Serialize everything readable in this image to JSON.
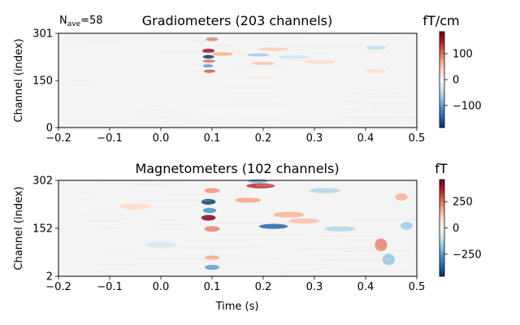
{
  "chart_data": [
    {
      "type": "heatmap",
      "title": "Gradiometers (203 channels)",
      "annotation": {
        "main": "N",
        "sub": "ave",
        "suffix": "=58"
      },
      "xlabel": "",
      "ylabel": "Channel (index)",
      "xlim": [
        -0.2,
        0.5
      ],
      "xticks": [
        -0.2,
        -0.1,
        0.0,
        0.1,
        0.2,
        0.3,
        0.4,
        0.5
      ],
      "xtick_labels": [
        "−0.2",
        "−0.1",
        "0.0",
        "0.1",
        "0.2",
        "0.3",
        "0.4",
        "0.5"
      ],
      "ylim": [
        0,
        301
      ],
      "yticks": [
        0,
        150,
        301
      ],
      "ytick_labels": [
        "0",
        "150",
        "301"
      ],
      "colorbar": {
        "label": "fT/cm",
        "range": [
          -185,
          185
        ],
        "ticks": [
          100,
          0,
          -100
        ],
        "tick_labels": [
          "100",
          "0",
          "−100"
        ],
        "colormap": "RdBu_r"
      },
      "features": [
        {
          "t": 0.093,
          "ch": 245,
          "amp": 0.85,
          "dt": 0.012,
          "dch": 7
        },
        {
          "t": 0.093,
          "ch": 226,
          "amp": -0.95,
          "dt": 0.011,
          "dch": 6
        },
        {
          "t": 0.094,
          "ch": 212,
          "amp": 0.55,
          "dt": 0.012,
          "dch": 5
        },
        {
          "t": 0.092,
          "ch": 197,
          "amp": -0.55,
          "dt": 0.01,
          "dch": 5
        },
        {
          "t": 0.095,
          "ch": 180,
          "amp": 0.7,
          "dt": 0.011,
          "dch": 5
        },
        {
          "t": 0.1,
          "ch": 282,
          "amp": 0.5,
          "dt": 0.012,
          "dch": 6
        },
        {
          "t": 0.12,
          "ch": 235,
          "amp": 0.35,
          "dt": 0.02,
          "dch": 6
        },
        {
          "t": 0.19,
          "ch": 232,
          "amp": -0.35,
          "dt": 0.022,
          "dch": 5
        },
        {
          "t": 0.2,
          "ch": 205,
          "amp": 0.3,
          "dt": 0.022,
          "dch": 5
        },
        {
          "t": 0.22,
          "ch": 250,
          "amp": 0.25,
          "dt": 0.03,
          "dch": 6
        },
        {
          "t": 0.26,
          "ch": 225,
          "amp": -0.2,
          "dt": 0.03,
          "dch": 6
        },
        {
          "t": 0.31,
          "ch": 210,
          "amp": 0.2,
          "dt": 0.03,
          "dch": 6
        },
        {
          "t": 0.42,
          "ch": 255,
          "amp": -0.25,
          "dt": 0.02,
          "dch": 6
        },
        {
          "t": 0.42,
          "ch": 180,
          "amp": 0.2,
          "dt": 0.02,
          "dch": 6
        }
      ]
    },
    {
      "type": "heatmap",
      "title": "Magnetometers (102 channels)",
      "xlabel": "Time (s)",
      "ylabel": "Channel (index)",
      "xlim": [
        -0.2,
        0.5
      ],
      "xticks": [
        -0.2,
        -0.1,
        0.0,
        0.1,
        0.2,
        0.3,
        0.4,
        0.5
      ],
      "xtick_labels": [
        "−0.2",
        "−0.1",
        "0.0",
        "0.1",
        "0.2",
        "0.3",
        "0.4",
        "0.5"
      ],
      "ylim": [
        2,
        302
      ],
      "yticks": [
        2,
        152,
        302
      ],
      "ytick_labels": [
        "2",
        "152",
        "302"
      ],
      "colorbar": {
        "label": "fT",
        "range": [
          -460,
          460
        ],
        "ticks": [
          250,
          0,
          -250
        ],
        "tick_labels": [
          "250",
          "0",
          "−250"
        ],
        "colormap": "RdBu_r"
      },
      "features": [
        {
          "t": 0.093,
          "ch": 235,
          "amp": -0.95,
          "dt": 0.014,
          "dch": 9
        },
        {
          "t": 0.093,
          "ch": 185,
          "amp": 0.95,
          "dt": 0.014,
          "dch": 9
        },
        {
          "t": 0.095,
          "ch": 208,
          "amp": -0.6,
          "dt": 0.013,
          "dch": 8
        },
        {
          "t": 0.1,
          "ch": 150,
          "amp": 0.5,
          "dt": 0.015,
          "dch": 9
        },
        {
          "t": 0.1,
          "ch": 30,
          "amp": -0.55,
          "dt": 0.014,
          "dch": 8
        },
        {
          "t": 0.1,
          "ch": 60,
          "amp": 0.4,
          "dt": 0.014,
          "dch": 7
        },
        {
          "t": 0.1,
          "ch": 270,
          "amp": 0.45,
          "dt": 0.015,
          "dch": 8
        },
        {
          "t": 0.195,
          "ch": 285,
          "amp": 0.75,
          "dt": 0.028,
          "dch": 8
        },
        {
          "t": 0.19,
          "ch": 300,
          "amp": -0.5,
          "dt": 0.02,
          "dch": 6
        },
        {
          "t": 0.22,
          "ch": 158,
          "amp": -0.8,
          "dt": 0.028,
          "dch": 8
        },
        {
          "t": 0.17,
          "ch": 240,
          "amp": 0.4,
          "dt": 0.025,
          "dch": 8
        },
        {
          "t": 0.25,
          "ch": 195,
          "amp": 0.35,
          "dt": 0.03,
          "dch": 9
        },
        {
          "t": 0.28,
          "ch": 175,
          "amp": 0.3,
          "dt": 0.03,
          "dch": 8
        },
        {
          "t": 0.32,
          "ch": 270,
          "amp": -0.3,
          "dt": 0.03,
          "dch": 8
        },
        {
          "t": 0.35,
          "ch": 150,
          "amp": -0.3,
          "dt": 0.03,
          "dch": 8
        },
        {
          "t": 0.43,
          "ch": 100,
          "amp": 0.5,
          "dt": 0.012,
          "dch": 20
        },
        {
          "t": 0.445,
          "ch": 55,
          "amp": -0.4,
          "dt": 0.012,
          "dch": 18
        },
        {
          "t": 0.47,
          "ch": 250,
          "amp": 0.35,
          "dt": 0.012,
          "dch": 12
        },
        {
          "t": 0.48,
          "ch": 160,
          "amp": -0.35,
          "dt": 0.012,
          "dch": 12
        },
        {
          "t": -0.05,
          "ch": 220,
          "amp": 0.2,
          "dt": 0.03,
          "dch": 10
        },
        {
          "t": 0.0,
          "ch": 100,
          "amp": -0.2,
          "dt": 0.03,
          "dch": 10
        }
      ]
    }
  ]
}
